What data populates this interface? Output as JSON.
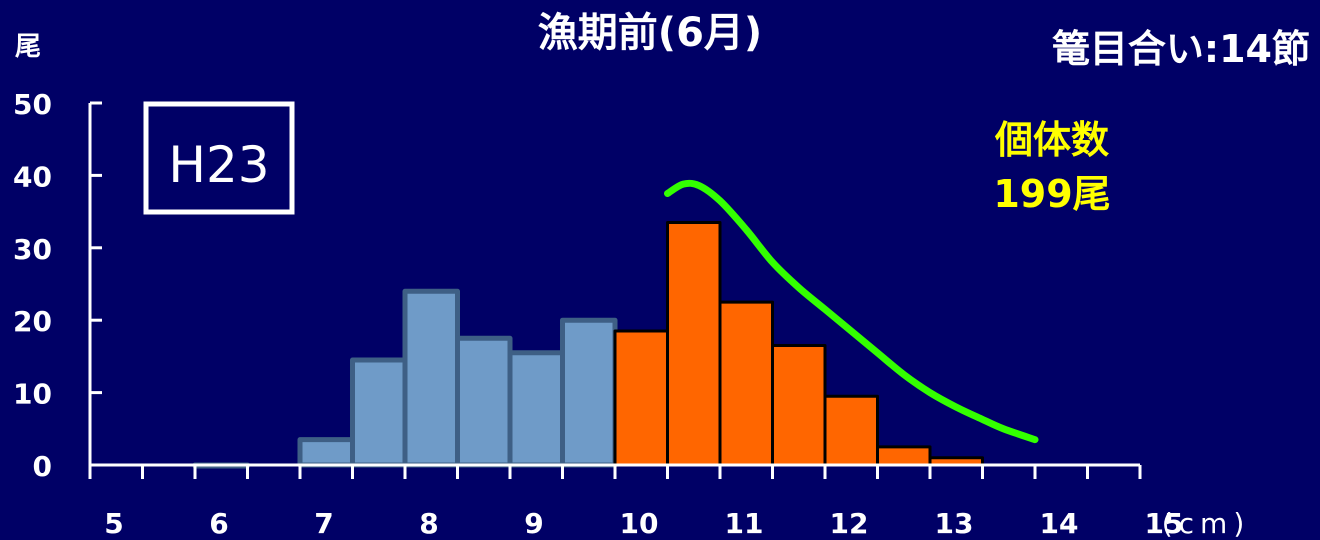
{
  "chart_data": {
    "type": "bar",
    "title": "漁期前(6月)",
    "subtitle": "篭目合い:14節",
    "ylabel": "尾",
    "xlabel_unit": "(cm)",
    "badge": "H23",
    "annotation": {
      "line1": "個体数",
      "line2": "199尾"
    },
    "ylim": [
      0,
      50
    ],
    "yticks": [
      "0",
      "10",
      "20",
      "30",
      "40",
      "50"
    ],
    "xlim": [
      5,
      15
    ],
    "xticks": [
      "5",
      "6",
      "7",
      "8",
      "9",
      "10",
      "11",
      "12",
      "13",
      "14",
      "15"
    ],
    "bin_width": 0.5,
    "series": [
      {
        "color": "#6f9bc8",
        "edge": "#3e5f85",
        "bins": [
          {
            "x": 6.0,
            "value": 0
          },
          {
            "x": 7.0,
            "value": 3.5
          },
          {
            "x": 7.5,
            "value": 14.5
          },
          {
            "x": 8.0,
            "value": 24
          },
          {
            "x": 8.5,
            "value": 17.5
          },
          {
            "x": 9.0,
            "value": 15.5
          },
          {
            "x": 9.5,
            "value": 20
          }
        ]
      },
      {
        "color": "#ff6600",
        "edge": "#000000",
        "bins": [
          {
            "x": 10.0,
            "value": 18.5
          },
          {
            "x": 10.5,
            "value": 33.5
          },
          {
            "x": 11.0,
            "value": 22.5
          },
          {
            "x": 11.5,
            "value": 16.5
          },
          {
            "x": 12.0,
            "value": 9.5
          },
          {
            "x": 12.5,
            "value": 2.5
          },
          {
            "x": 13.0,
            "value": 1
          }
        ]
      }
    ],
    "curve": {
      "color": "#33ff00",
      "points": [
        [
          10.5,
          37.5
        ],
        [
          10.65,
          38.8
        ],
        [
          10.8,
          38.6
        ],
        [
          11.0,
          36.5
        ],
        [
          11.25,
          32.5
        ],
        [
          11.5,
          28.0
        ],
        [
          11.75,
          24.5
        ],
        [
          12.0,
          21.5
        ],
        [
          12.25,
          18.5
        ],
        [
          12.5,
          15.5
        ],
        [
          12.75,
          12.5
        ],
        [
          13.0,
          10.0
        ],
        [
          13.25,
          8.0
        ],
        [
          13.5,
          6.3
        ],
        [
          13.7,
          5.0
        ],
        [
          14.0,
          3.5
        ]
      ]
    }
  }
}
